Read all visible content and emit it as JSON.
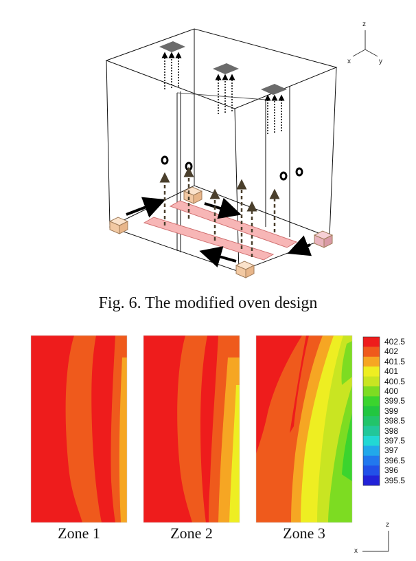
{
  "figure_caption": "Fig. 6. The modified oven design",
  "axes_top": {
    "z": "z",
    "x": "x",
    "y": "y"
  },
  "axes_bottom": {
    "z": "z",
    "x": "x"
  },
  "zones": [
    {
      "label": "Zone 1"
    },
    {
      "label": "Zone 2"
    },
    {
      "label": "Zone 3"
    }
  ],
  "chart_data": {
    "type": "heatmap",
    "colorbar": {
      "levels": [
        "402.5",
        "402",
        "401.5",
        "401",
        "400.5",
        "400",
        "399.5",
        "399",
        "398.5",
        "398",
        "397.5",
        "397",
        "396.5",
        "396",
        "395.5"
      ],
      "colors": [
        "#ee1c1c",
        "#ef5a1c",
        "#f6a623",
        "#eeee22",
        "#c9e522",
        "#7ddc22",
        "#3bd42e",
        "#22c640",
        "#22c46a",
        "#22c79a",
        "#22d8d4",
        "#22a8ea",
        "#2278ee",
        "#2250e8",
        "#2222d8"
      ]
    }
  }
}
